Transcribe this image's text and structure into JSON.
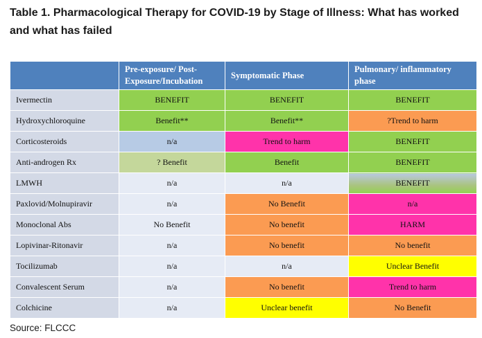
{
  "title": "Table 1. Pharmacological Therapy for COVID-19 by Stage of Illness: What has worked and what has failed",
  "headers": [
    "",
    "Pre-exposure/ Post-Exposure/Incubation",
    "Symptomatic Phase",
    "Pulmonary/ inflammatory phase"
  ],
  "rows": [
    {
      "drug": "Ivermectin",
      "cells": [
        {
          "text": "BENEFIT",
          "color": "#92d050"
        },
        {
          "text": "BENEFIT",
          "color": "#92d050"
        },
        {
          "text": "BENEFIT",
          "color": "#92d050"
        }
      ]
    },
    {
      "drug": "Hydroxychloroquine",
      "cells": [
        {
          "text": "Benefit**",
          "color": "#92d050"
        },
        {
          "text": "Benefit**",
          "color": "#92d050"
        },
        {
          "text": "?Trend to harm",
          "color": "#fb9b52"
        }
      ]
    },
    {
      "drug": "Corticosteroids",
      "cells": [
        {
          "text": "n/a",
          "color": "#b7cbe5"
        },
        {
          "text": "Trend to harm",
          "color": "#ff33aa"
        },
        {
          "text": "BENEFIT",
          "color": "#92d050"
        }
      ]
    },
    {
      "drug": "Anti-androgen Rx",
      "cells": [
        {
          "text": "? Benefit",
          "color": "#c4d79b"
        },
        {
          "text": "Benefit",
          "color": "#92d050"
        },
        {
          "text": "BENEFIT",
          "color": "#92d050"
        }
      ]
    },
    {
      "drug": "LMWH",
      "cells": [
        {
          "text": "n/a",
          "color": "#e6ebf5"
        },
        {
          "text": "n/a",
          "color": "#e6ebf5"
        },
        {
          "text": "BENEFIT",
          "color": "#92d050"
        }
      ]
    },
    {
      "drug": "Paxlovid/Molnupiravir",
      "cells": [
        {
          "text": "n/a",
          "color": "#e6ebf5"
        },
        {
          "text": "No Benefit",
          "color": "#fb9b52"
        },
        {
          "text": "n/a",
          "color": "#ff33aa"
        }
      ]
    },
    {
      "drug": "Monoclonal Abs",
      "cells": [
        {
          "text": "No Benefit",
          "color": "#e6ebf5"
        },
        {
          "text": "No benefit",
          "color": "#fb9b52"
        },
        {
          "text": "HARM",
          "color": "#ff33aa"
        }
      ]
    },
    {
      "drug": "Lopivinar-Ritonavir",
      "cells": [
        {
          "text": "n/a",
          "color": "#e6ebf5"
        },
        {
          "text": "No benefit",
          "color": "#fb9b52"
        },
        {
          "text": "No benefit",
          "color": "#fb9b52"
        }
      ]
    },
    {
      "drug": "Tocilizumab",
      "cells": [
        {
          "text": "n/a",
          "color": "#e6ebf5"
        },
        {
          "text": "n/a",
          "color": "#e6ebf5"
        },
        {
          "text": "Unclear Benefit",
          "color": "#ffff00"
        }
      ]
    },
    {
      "drug": "Convalescent Serum",
      "cells": [
        {
          "text": "n/a",
          "color": "#e6ebf5"
        },
        {
          "text": "No benefit",
          "color": "#fb9b52"
        },
        {
          "text": "Trend to harm",
          "color": "#ff33aa"
        }
      ]
    },
    {
      "drug": "Colchicine",
      "cells": [
        {
          "text": "n/a",
          "color": "#e6ebf5"
        },
        {
          "text": "Unclear benefit",
          "color": "#ffff00"
        },
        {
          "text": "No Benefit",
          "color": "#fb9b52"
        }
      ]
    }
  ],
  "source": "Source: FLCCC"
}
